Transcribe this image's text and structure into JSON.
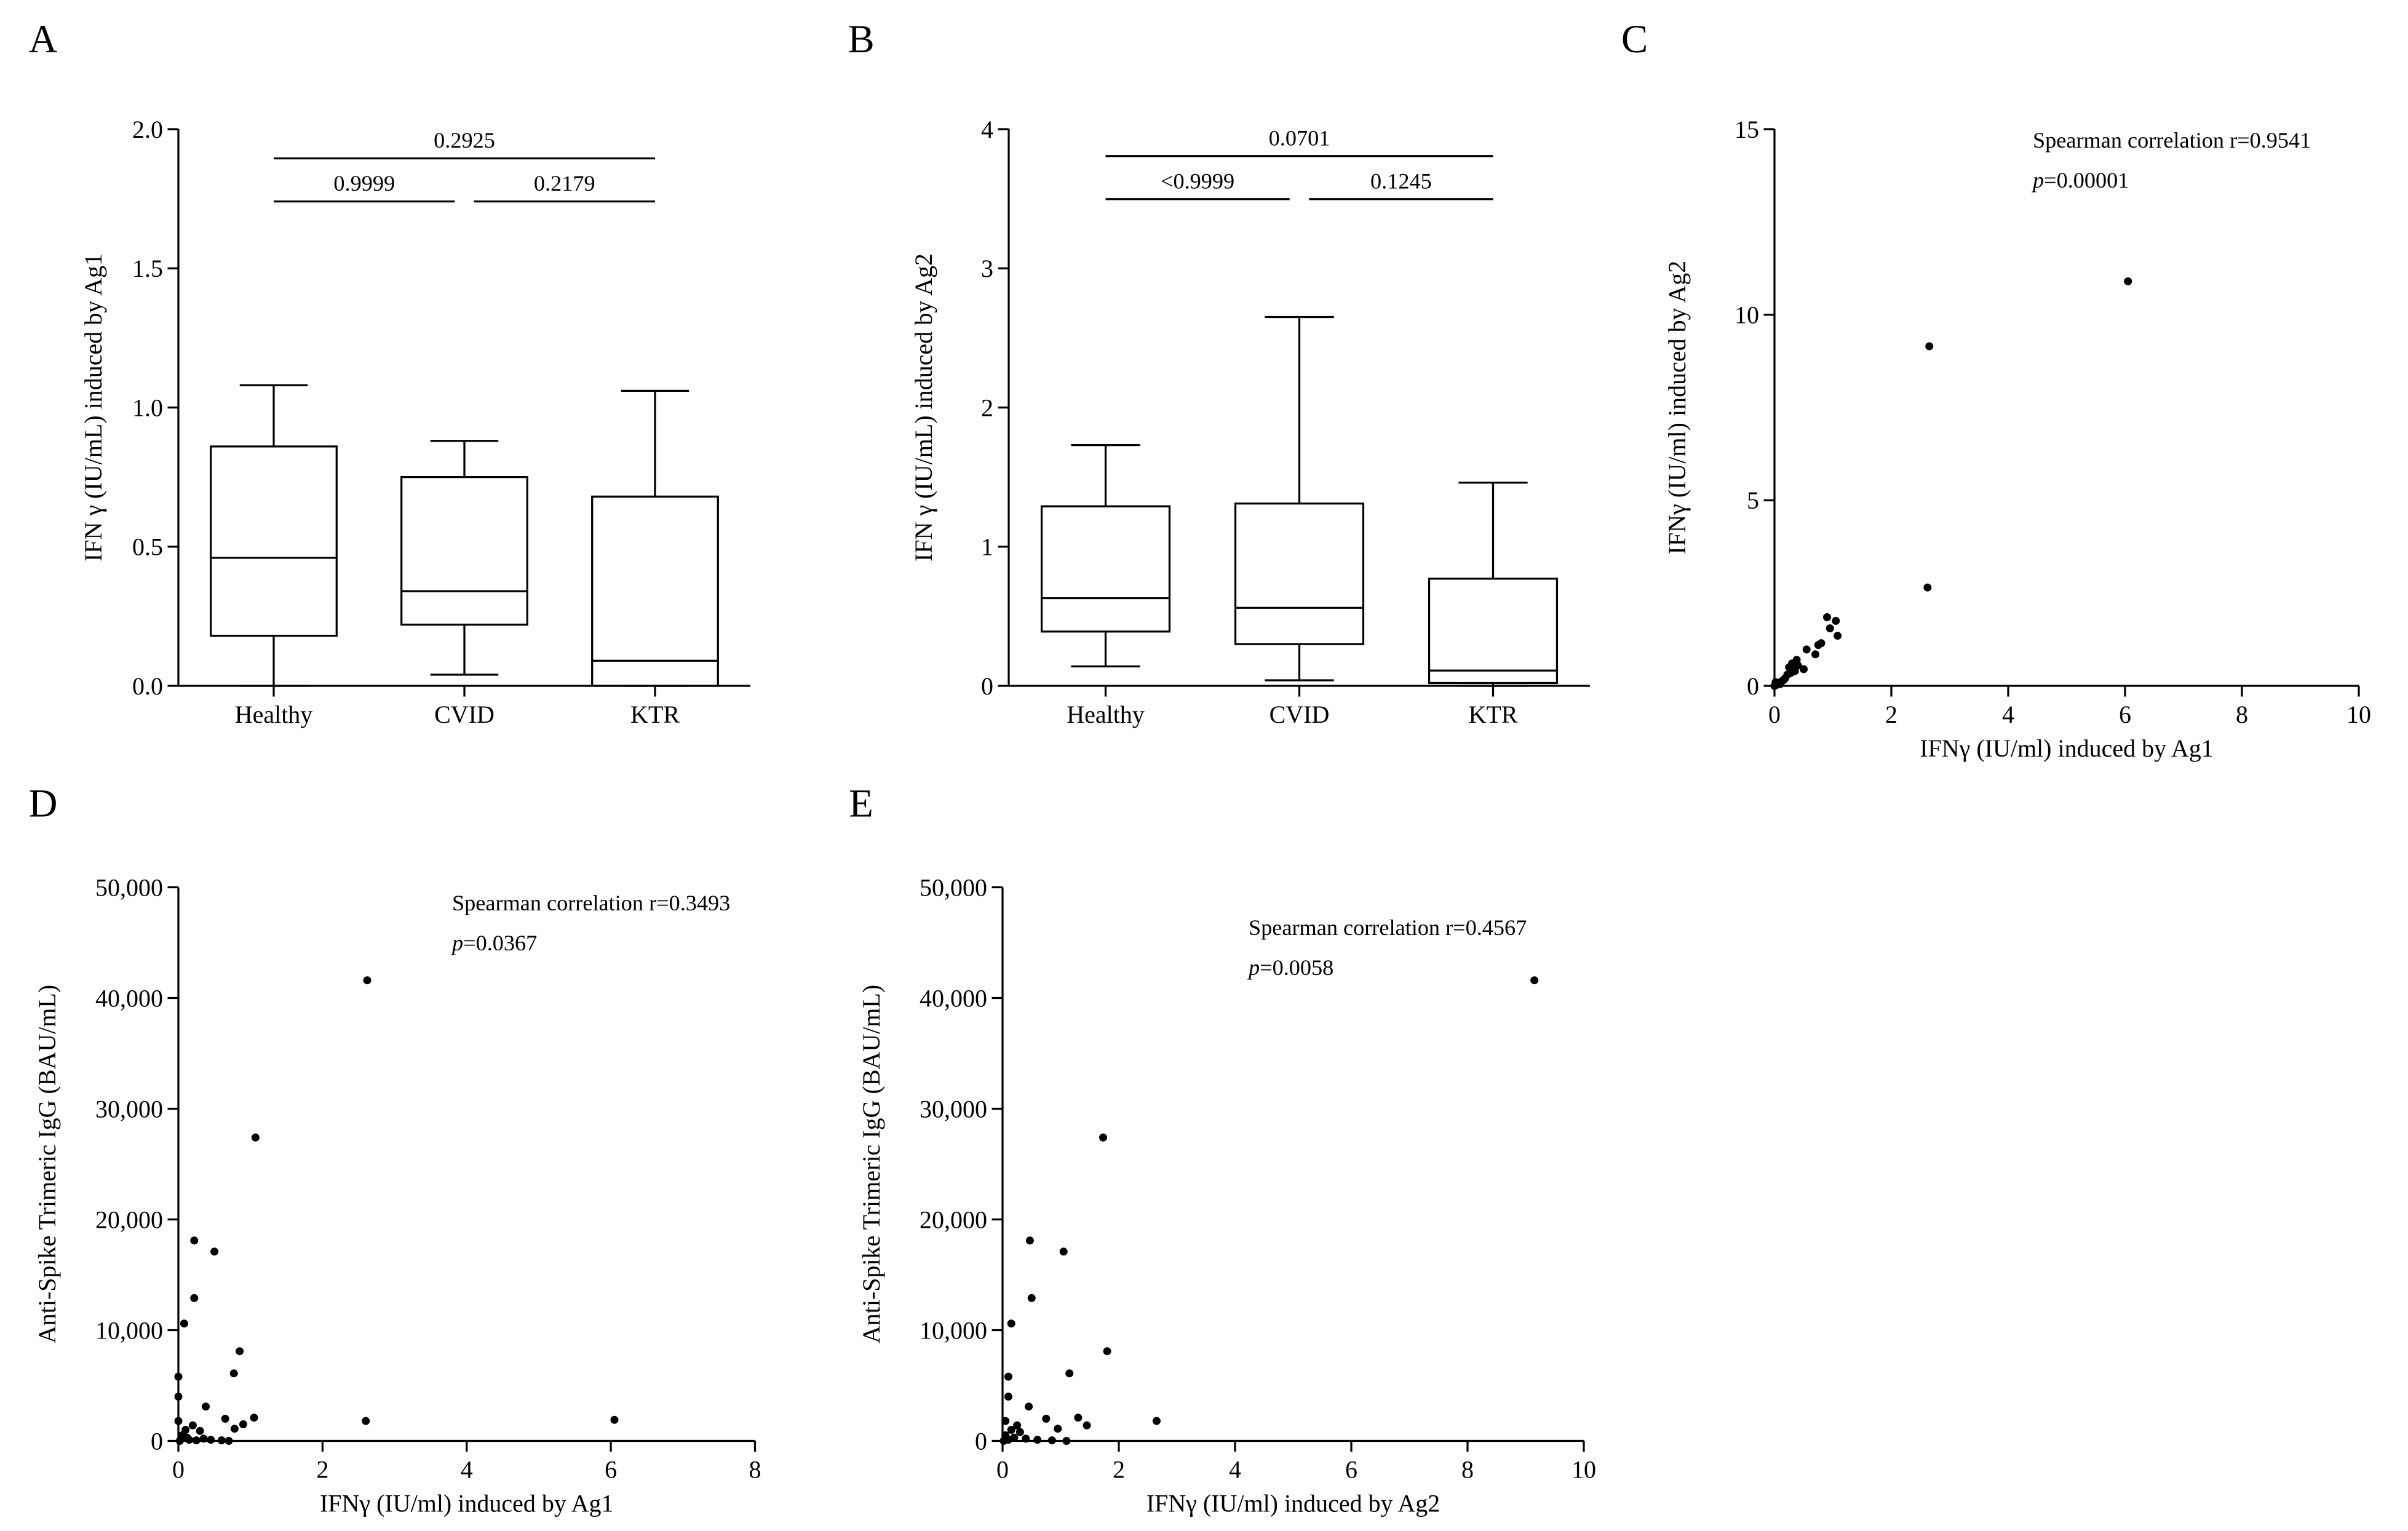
{
  "chart_data": [
    {
      "id": "A",
      "panel_letter": "A",
      "type": "box",
      "ylabel": "IFN γ (IU/mL) induced by Ag1",
      "xlabel": "",
      "ylim": [
        0,
        2.0
      ],
      "yticks": [
        0.0,
        0.5,
        1.0,
        1.5,
        2.0
      ],
      "ytick_labels": [
        "0.0",
        "0.5",
        "1.0",
        "1.5",
        "2.0"
      ],
      "categories": [
        "Healthy",
        "CVID",
        "KTR"
      ],
      "boxes": [
        {
          "name": "Healthy",
          "min": 0.0,
          "q1": 0.18,
          "median": 0.46,
          "q3": 0.86,
          "max": 1.08
        },
        {
          "name": "CVID",
          "min": 0.04,
          "q1": 0.22,
          "median": 0.34,
          "q3": 0.75,
          "max": 0.88
        },
        {
          "name": "KTR",
          "min": 0.0,
          "q1": 0.0,
          "median": 0.09,
          "q3": 0.68,
          "max": 1.06
        }
      ],
      "brackets": [
        {
          "from": 0,
          "to": 2,
          "label": "0.2925",
          "level": 2
        },
        {
          "from": 0,
          "to": 1,
          "label": "0.9999",
          "level": 1
        },
        {
          "from": 1,
          "to": 2,
          "label": "0.2179",
          "level": 1
        }
      ]
    },
    {
      "id": "B",
      "panel_letter": "B",
      "type": "box",
      "ylabel": "IFN γ (IU/mL) induced by Ag2",
      "xlabel": "",
      "ylim": [
        0,
        4
      ],
      "yticks": [
        0,
        1,
        2,
        3,
        4
      ],
      "ytick_labels": [
        "0",
        "1",
        "2",
        "3",
        "4"
      ],
      "categories": [
        "Healthy",
        "CVID",
        "KTR"
      ],
      "boxes": [
        {
          "name": "Healthy",
          "min": 0.14,
          "q1": 0.39,
          "median": 0.63,
          "q3": 1.29,
          "max": 1.73
        },
        {
          "name": "CVID",
          "min": 0.04,
          "q1": 0.3,
          "median": 0.56,
          "q3": 1.31,
          "max": 2.65
        },
        {
          "name": "KTR",
          "min": 0.0,
          "q1": 0.02,
          "median": 0.11,
          "q3": 0.77,
          "max": 1.46
        }
      ],
      "brackets": [
        {
          "from": 0,
          "to": 2,
          "label": "0.0701",
          "level": 2
        },
        {
          "from": 0,
          "to": 1,
          "label": "<0.9999",
          "level": 1
        },
        {
          "from": 1,
          "to": 2,
          "label": "0.1245",
          "level": 1
        }
      ]
    },
    {
      "id": "C",
      "panel_letter": "C",
      "type": "scatter",
      "xlabel": "IFNγ (IU/ml) induced by Ag1",
      "ylabel": "IFNγ (IU/ml) induced by Ag2",
      "xlim": [
        0,
        10
      ],
      "ylim": [
        0,
        15
      ],
      "xticks": [
        0,
        2,
        4,
        6,
        8,
        10
      ],
      "xtick_labels": [
        "0",
        "2",
        "4",
        "6",
        "8",
        "10"
      ],
      "yticks": [
        0,
        5,
        10,
        15
      ],
      "ytick_labels": [
        "0",
        "5",
        "10",
        "15"
      ],
      "annotation": "Spearman correlation r=0.9541",
      "p_label": "p",
      "p_value": "=0.00001",
      "points": [
        [
          6.05,
          10.9
        ],
        [
          2.65,
          9.15
        ],
        [
          2.62,
          2.65
        ],
        [
          0.9,
          1.85
        ],
        [
          1.05,
          1.75
        ],
        [
          0.95,
          1.55
        ],
        [
          1.08,
          1.35
        ],
        [
          0.8,
          1.15
        ],
        [
          0.75,
          1.1
        ],
        [
          0.7,
          0.85
        ],
        [
          0.55,
          0.98
        ],
        [
          0.38,
          0.7
        ],
        [
          0.3,
          0.6
        ],
        [
          0.25,
          0.5
        ],
        [
          0.35,
          0.4
        ],
        [
          0.5,
          0.45
        ],
        [
          0.28,
          0.35
        ],
        [
          0.22,
          0.3
        ],
        [
          0.18,
          0.2
        ],
        [
          0.12,
          0.12
        ],
        [
          0.08,
          0.08
        ],
        [
          0.05,
          0.05
        ],
        [
          0.03,
          0.02
        ],
        [
          0.0,
          0.0
        ],
        [
          0.1,
          0.05
        ],
        [
          0.15,
          0.15
        ],
        [
          0.4,
          0.55
        ],
        [
          0.02,
          0.1
        ]
      ]
    },
    {
      "id": "D",
      "panel_letter": "D",
      "type": "scatter",
      "xlabel": "IFNγ (IU/ml) induced by Ag1",
      "ylabel": "Anti-Spike Trimeric IgG (BAU/mL)",
      "xlim": [
        0,
        8
      ],
      "ylim": [
        0,
        50000
      ],
      "xticks": [
        0,
        2,
        4,
        6,
        8
      ],
      "xtick_labels": [
        "0",
        "2",
        "4",
        "6",
        "8"
      ],
      "yticks": [
        0,
        10000,
        20000,
        30000,
        40000,
        50000
      ],
      "ytick_labels": [
        "0",
        "10,000",
        "20,000",
        "30,000",
        "40,000",
        "50,000"
      ],
      "annotation": "Spearman correlation r=0.3493",
      "p_label": "p",
      "p_value": "=0.0367",
      "points": [
        [
          2.62,
          41600
        ],
        [
          1.07,
          27400
        ],
        [
          0.22,
          18100
        ],
        [
          0.5,
          17100
        ],
        [
          0.22,
          12900
        ],
        [
          0.08,
          10600
        ],
        [
          0.85,
          8100
        ],
        [
          0.77,
          6100
        ],
        [
          0.0,
          5800
        ],
        [
          0.0,
          4000
        ],
        [
          0.38,
          3100
        ],
        [
          1.05,
          2100
        ],
        [
          0.65,
          2000
        ],
        [
          2.6,
          1800
        ],
        [
          6.05,
          1900
        ],
        [
          0.9,
          1500
        ],
        [
          0.78,
          1100
        ],
        [
          0.0,
          1800
        ],
        [
          0.2,
          1400
        ],
        [
          0.1,
          1000
        ],
        [
          0.3,
          900
        ],
        [
          0.05,
          500
        ],
        [
          0.12,
          300
        ],
        [
          0.35,
          200
        ],
        [
          0.45,
          100
        ],
        [
          0.6,
          50
        ],
        [
          0.7,
          0
        ],
        [
          0.02,
          0
        ],
        [
          0.15,
          100
        ],
        [
          0.25,
          50
        ]
      ]
    },
    {
      "id": "E",
      "panel_letter": "E",
      "type": "scatter",
      "xlabel": "IFNγ (IU/ml) induced by Ag2",
      "ylabel": "Anti-Spike Trimeric IgG (BAU/mL)",
      "xlim": [
        0,
        10
      ],
      "ylim": [
        0,
        50000
      ],
      "xticks": [
        0,
        2,
        4,
        6,
        8,
        10
      ],
      "xtick_labels": [
        "0",
        "2",
        "4",
        "6",
        "8",
        "10"
      ],
      "yticks": [
        0,
        10000,
        20000,
        30000,
        40000,
        50000
      ],
      "ytick_labels": [
        "0",
        "10,000",
        "20,000",
        "30,000",
        "40,000",
        "50,000"
      ],
      "annotation": "Spearman correlation r=0.4567",
      "p_label": "p",
      "p_value": "=0.0058",
      "points": [
        [
          9.15,
          41600
        ],
        [
          1.73,
          27400
        ],
        [
          0.47,
          18100
        ],
        [
          1.05,
          17100
        ],
        [
          0.5,
          12900
        ],
        [
          0.15,
          10600
        ],
        [
          1.8,
          8100
        ],
        [
          1.15,
          6100
        ],
        [
          0.1,
          5800
        ],
        [
          0.1,
          4000
        ],
        [
          0.45,
          3100
        ],
        [
          1.3,
          2100
        ],
        [
          0.75,
          2000
        ],
        [
          2.65,
          1800
        ],
        [
          1.45,
          1400
        ],
        [
          0.95,
          1100
        ],
        [
          0.05,
          1800
        ],
        [
          0.25,
          1400
        ],
        [
          0.15,
          1000
        ],
        [
          0.3,
          800
        ],
        [
          0.05,
          500
        ],
        [
          0.2,
          300
        ],
        [
          0.4,
          200
        ],
        [
          0.6,
          100
        ],
        [
          0.85,
          50
        ],
        [
          1.1,
          0
        ],
        [
          0.02,
          0
        ],
        [
          0.1,
          100
        ]
      ]
    }
  ]
}
